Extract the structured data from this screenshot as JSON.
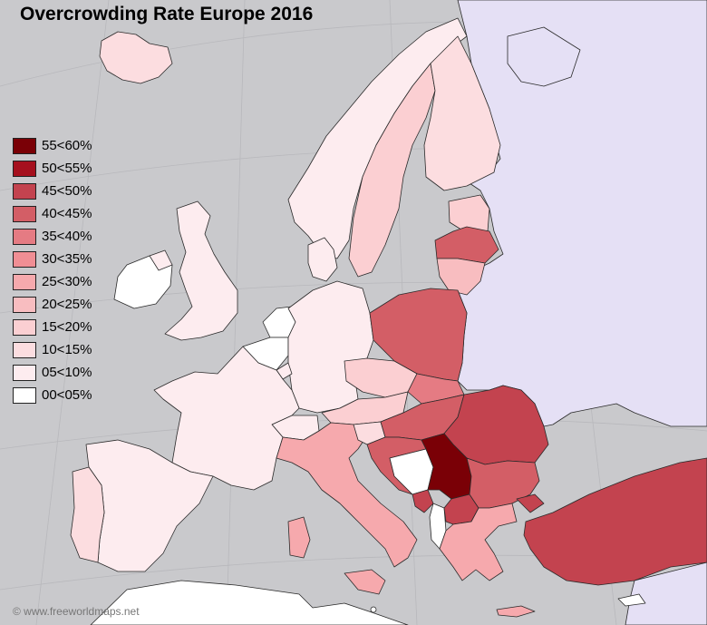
{
  "title": "Overcrowding Rate Europe 2016",
  "credit": "© www.freeworldmaps.net",
  "legend": [
    {
      "label": "55<60%",
      "color": "#7a0006"
    },
    {
      "label": "50<55%",
      "color": "#a5101e"
    },
    {
      "label": "45<50%",
      "color": "#c3434f"
    },
    {
      "label": "40<45%",
      "color": "#d35e66"
    },
    {
      "label": "35<40%",
      "color": "#e57b83"
    },
    {
      "label": "30<35%",
      "color": "#f08e94"
    },
    {
      "label": "25<30%",
      "color": "#f6a9ad"
    },
    {
      "label": "20<25%",
      "color": "#f8bdc0"
    },
    {
      "label": "15<20%",
      "color": "#fbcfd2"
    },
    {
      "label": "10<15%",
      "color": "#fcdde0"
    },
    {
      "label": "05<10%",
      "color": "#fdecef"
    },
    {
      "label": "00<05%",
      "color": "#ffffff"
    }
  ],
  "colors": {
    "sea": "#c9c9cc",
    "non_eu_land": "#e5e0f5",
    "africa_land": "#ffffff"
  },
  "countries": [
    {
      "name": "Iceland",
      "band": "10<15%"
    },
    {
      "name": "Norway",
      "band": "05<10%"
    },
    {
      "name": "Sweden",
      "band": "15<20%"
    },
    {
      "name": "Finland",
      "band": "10<15%"
    },
    {
      "name": "Estonia",
      "band": "15<20%"
    },
    {
      "name": "Latvia",
      "band": "40<45%"
    },
    {
      "name": "Lithuania",
      "band": "20<25%"
    },
    {
      "name": "Ireland",
      "band": "00<05%"
    },
    {
      "name": "United Kingdom",
      "band": "05<10%"
    },
    {
      "name": "Denmark",
      "band": "05<10%"
    },
    {
      "name": "Netherlands",
      "band": "00<05%"
    },
    {
      "name": "Belgium",
      "band": "00<05%"
    },
    {
      "name": "Luxembourg",
      "band": "05<10%"
    },
    {
      "name": "Germany",
      "band": "05<10%"
    },
    {
      "name": "Poland",
      "band": "40<45%"
    },
    {
      "name": "Czech Republic",
      "band": "15<20%"
    },
    {
      "name": "Slovakia",
      "band": "35<40%"
    },
    {
      "name": "Austria",
      "band": "15<20%"
    },
    {
      "name": "Switzerland",
      "band": "05<10%"
    },
    {
      "name": "France",
      "band": "05<10%"
    },
    {
      "name": "Spain",
      "band": "05<10%"
    },
    {
      "name": "Portugal",
      "band": "10<15%"
    },
    {
      "name": "Italy",
      "band": "25<30%"
    },
    {
      "name": "Slovenia",
      "band": "10<15%"
    },
    {
      "name": "Hungary",
      "band": "40<45%"
    },
    {
      "name": "Croatia",
      "band": "40<45%"
    },
    {
      "name": "Romania",
      "band": "45<50%"
    },
    {
      "name": "Serbia",
      "band": "55<60%"
    },
    {
      "name": "Bulgaria",
      "band": "40<45%"
    },
    {
      "name": "North Macedonia",
      "band": "45<50%"
    },
    {
      "name": "Montenegro",
      "band": "45<50%"
    },
    {
      "name": "Bosnia and Herzegovina",
      "band": "00<05%"
    },
    {
      "name": "Albania",
      "band": "00<05%"
    },
    {
      "name": "Greece",
      "band": "25<30%"
    },
    {
      "name": "Turkey",
      "band": "45<50%"
    },
    {
      "name": "Malta",
      "band": "00<05%"
    },
    {
      "name": "Cyprus",
      "band": "00<05%"
    }
  ]
}
